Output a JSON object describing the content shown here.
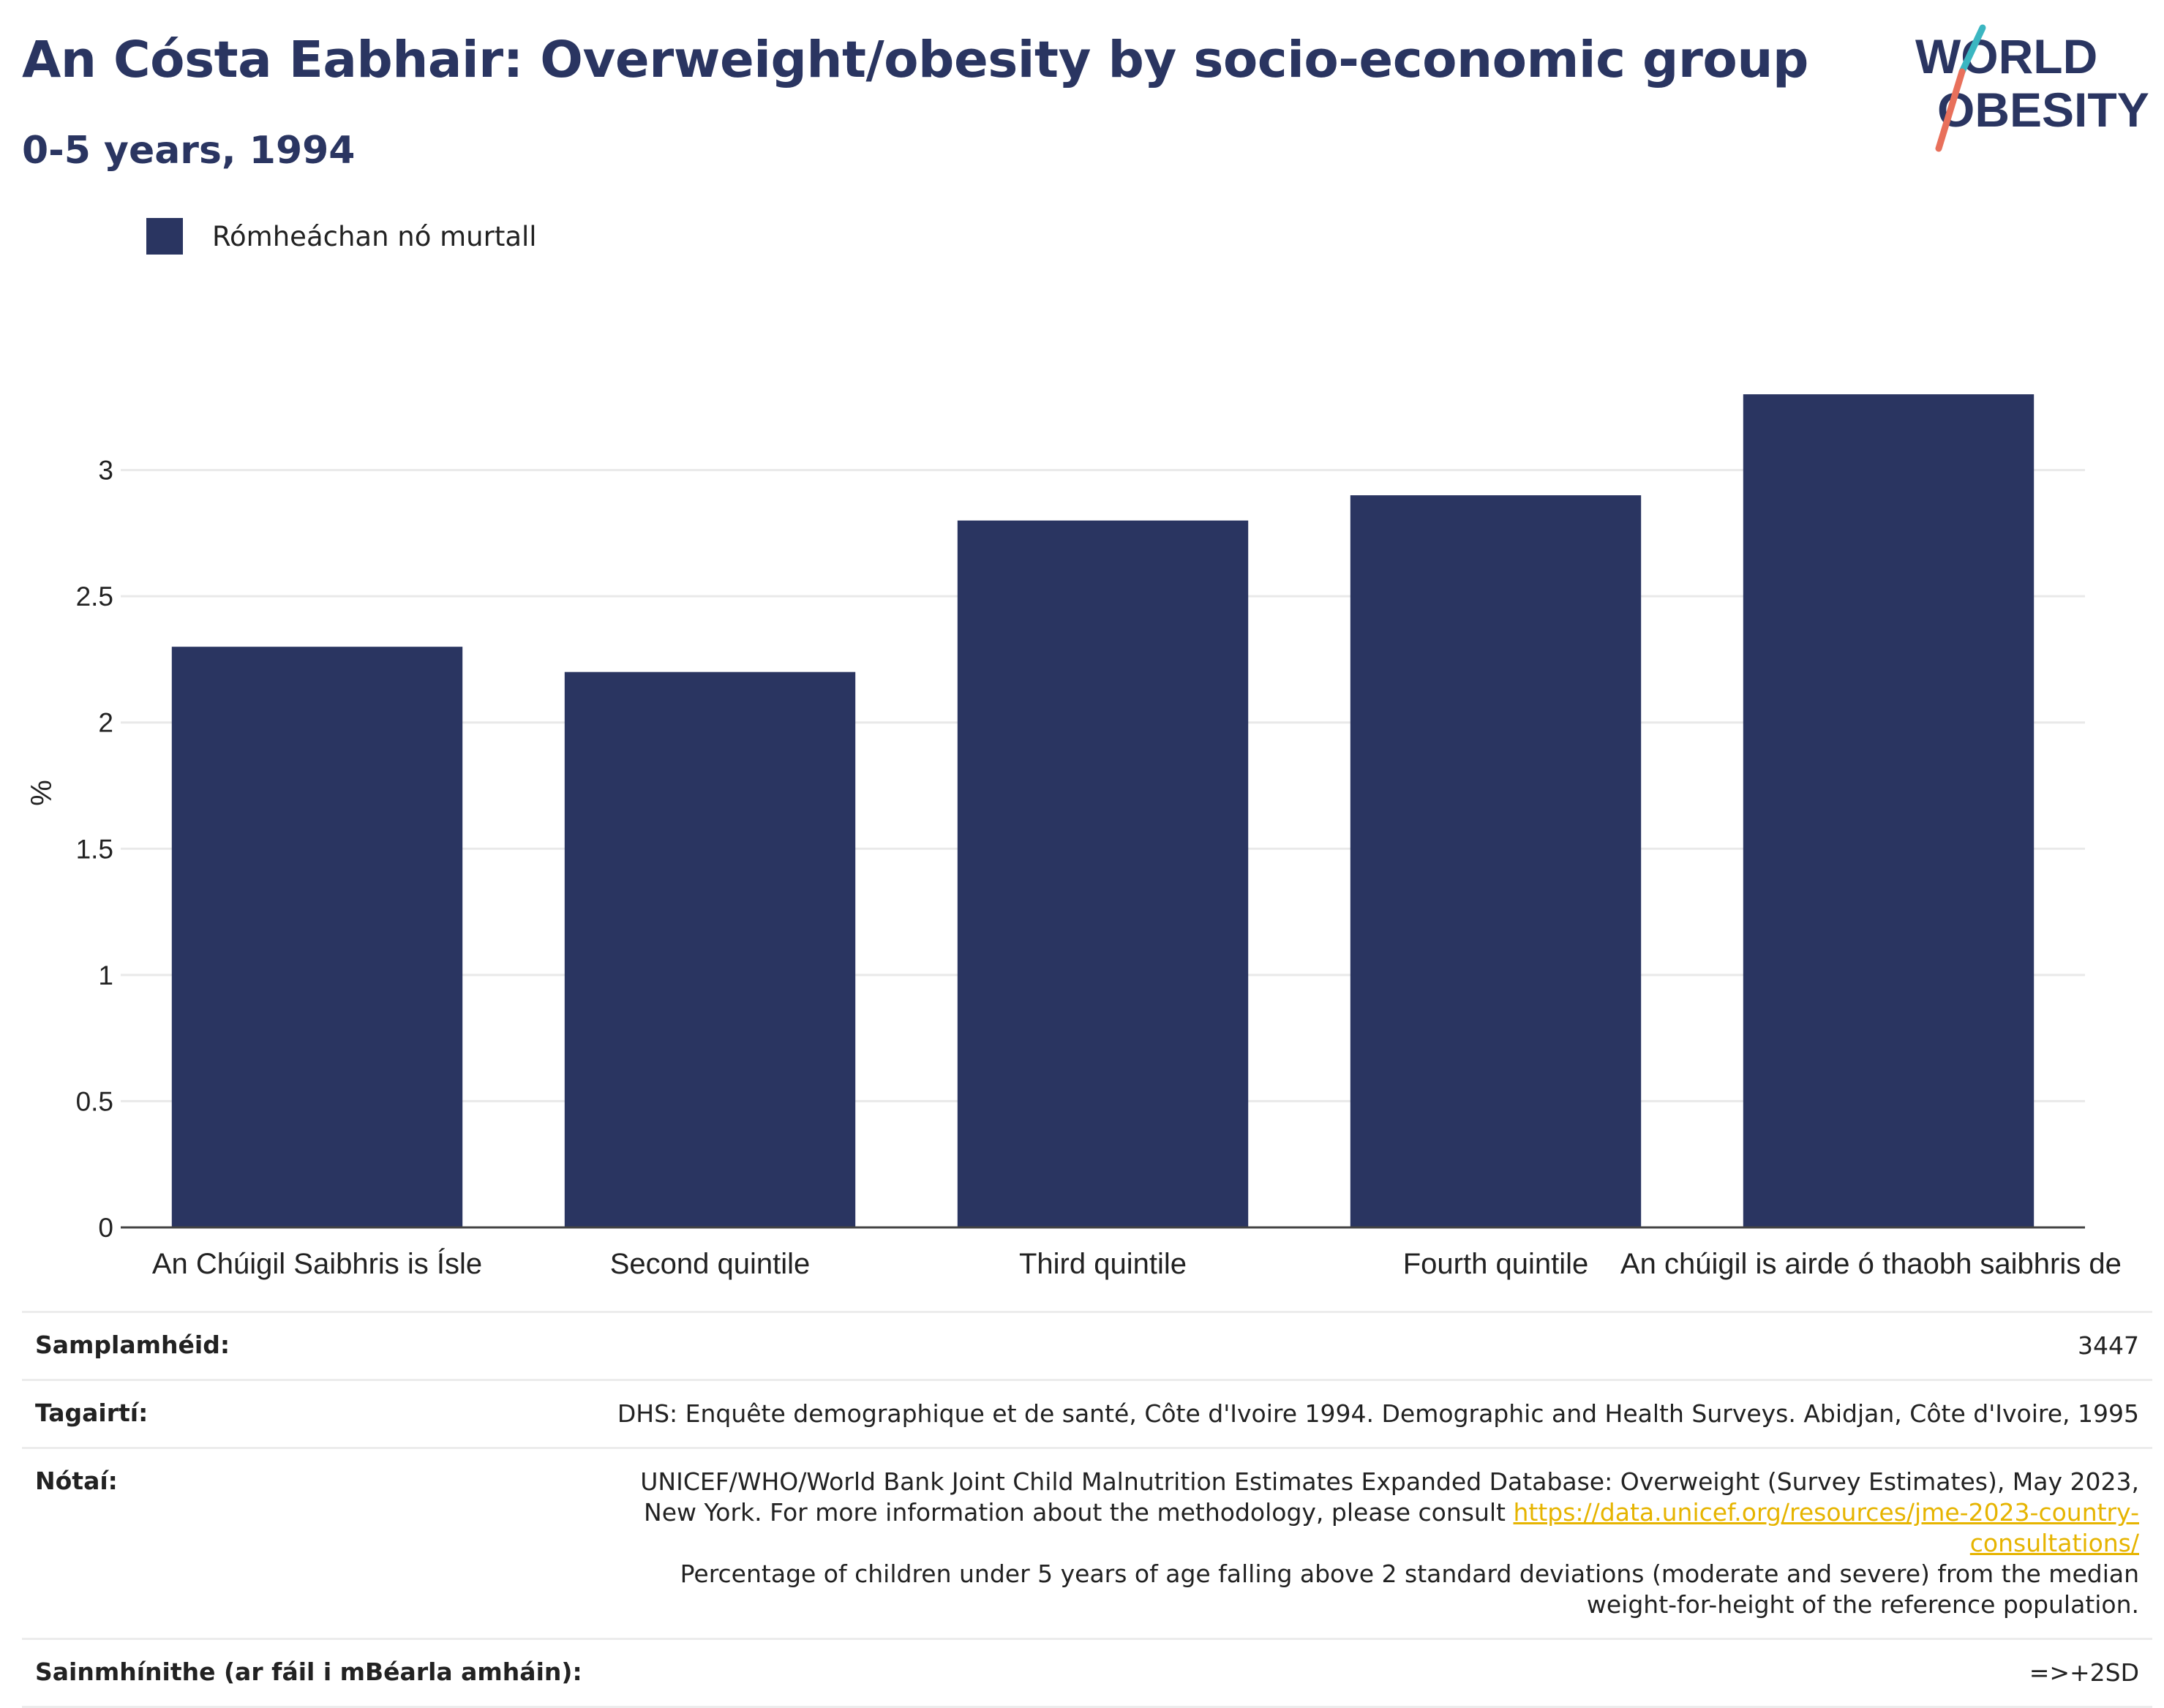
{
  "header": {
    "title": "An Cósta Eabhair: Overweight/obesity by socio-economic group",
    "subtitle": "0-5 years, 1994"
  },
  "logo": {
    "line1": "WORLD",
    "line2": "OBESITY",
    "accent_teal": "#3bb6c1",
    "accent_coral": "#e8705b"
  },
  "legend": {
    "label": "Rómheáchan nó murtall",
    "color": "#2a3561"
  },
  "chart_data": {
    "type": "bar",
    "categories": [
      "An Chúigil Saibhris is Ísle",
      "Second quintile",
      "Third quintile",
      "Fourth quintile",
      "An chúigil is airde ó thaobh saibhris de"
    ],
    "series": [
      {
        "name": "Rómheáchan nó murtall",
        "values": [
          2.3,
          2.2,
          2.8,
          2.9,
          3.3
        ]
      }
    ],
    "ylabel": "%",
    "ylim": [
      0,
      3.5
    ],
    "yticks": [
      0,
      0.5,
      1,
      1.5,
      2,
      2.5,
      3
    ],
    "ytick_labels": [
      "0",
      "0.5",
      "1",
      "1.5",
      "2",
      "2.5",
      "3"
    ],
    "grid": true,
    "bar_color": "#2a3561"
  },
  "info": {
    "sample_label": "Samplamhéid:",
    "sample_value": "3447",
    "refs_label": "Tagairtí:",
    "refs_value": "DHS: Enquête demographique et de santé, Côte d'Ivoire 1994. Demographic and Health Surveys. Abidjan, Côte d'Ivoire, 1995",
    "notes_label": "Nótaí:",
    "notes_line1": "UNICEF/WHO/World Bank Joint Child Malnutrition Estimates Expanded Database: Overweight (Survey Estimates), May 2023, New York. For more information about the methodology, please consult",
    "notes_link": "https://data.unicef.org/resources/jme-2023-country-consultations/",
    "notes_line2": "Percentage of children under 5 years of age falling above 2 standard deviations (moderate and severe) from the median weight-for-height of the reference population.",
    "defs_label": "Sainmhínithe (ar fáil i mBéarla amháin):",
    "defs_value": "=>+2SD"
  }
}
